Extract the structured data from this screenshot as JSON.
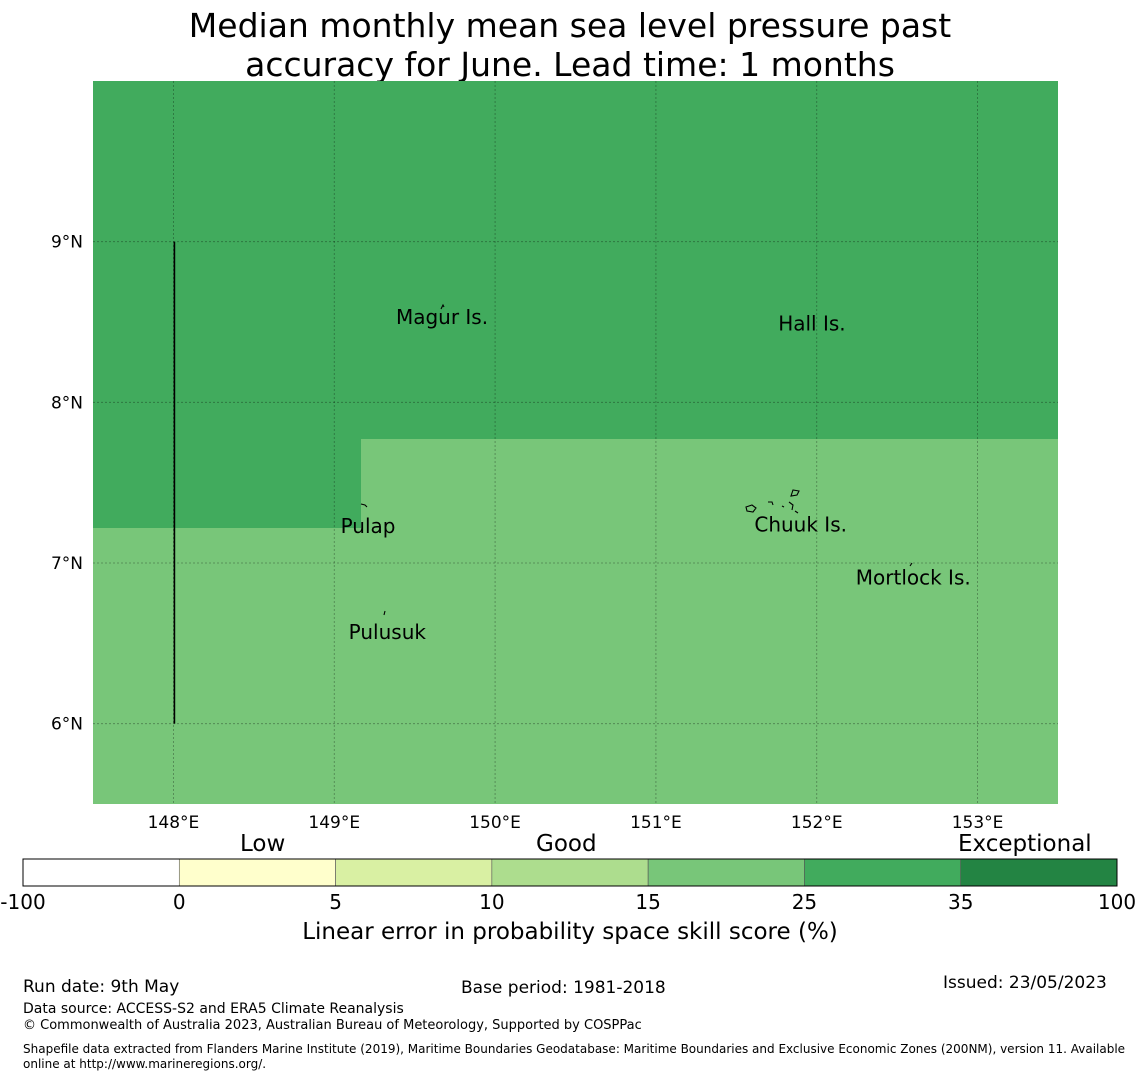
{
  "title_line1": "Median monthly mean sea level pressure past",
  "title_line2": "accuracy for June. Lead time: 1 months",
  "map": {
    "lon_range": [
      147.5,
      153.5
    ],
    "lat_range": [
      5.5,
      10.0
    ],
    "lon_ticks": [
      148,
      149,
      150,
      151,
      152,
      153
    ],
    "lon_tick_labels": [
      "148°E",
      "149°E",
      "150°E",
      "151°E",
      "152°E",
      "153°E"
    ],
    "lat_ticks": [
      9,
      8,
      7,
      6
    ],
    "lat_tick_labels": [
      "9°N",
      "8°N",
      "7°N",
      "6°N"
    ],
    "gridlines": true,
    "regions": [
      {
        "category": "25-35",
        "color": "#41ab5d",
        "description": "upper area"
      },
      {
        "category": "15-25",
        "color": "#78c679",
        "description": "lower area"
      }
    ],
    "boundary_line": {
      "lon": 148.0,
      "lat_from": 6.0,
      "lat_to": 9.0
    },
    "places": [
      {
        "name": "Magur Is.",
        "lon": 149.67,
        "lat": 8.53
      },
      {
        "name": "Hall Is.",
        "lon": 151.97,
        "lat": 8.49
      },
      {
        "name": "Pulap",
        "lon": 149.21,
        "lat": 7.23
      },
      {
        "name": "Chuuk Is.",
        "lon": 151.9,
        "lat": 7.24
      },
      {
        "name": "Mortlock Is.",
        "lon": 152.6,
        "lat": 6.91
      },
      {
        "name": "Pulusuk",
        "lon": 149.33,
        "lat": 6.57
      }
    ]
  },
  "colorbar": {
    "category_labels": [
      "Low",
      "Good",
      "Exceptional"
    ],
    "bins": [
      {
        "color": "#ffffff"
      },
      {
        "color": "#ffffcc"
      },
      {
        "color": "#d9f0a3"
      },
      {
        "color": "#addd8e"
      },
      {
        "color": "#78c679"
      },
      {
        "color": "#41ab5d"
      },
      {
        "color": "#238443"
      }
    ],
    "tick_labels": [
      "-100",
      "0",
      "5",
      "10",
      "15",
      "25",
      "35",
      "100"
    ],
    "title": "Linear error in probability space skill score (%)"
  },
  "footer": {
    "run_date": "Run date: 9th May",
    "base_period": "Base period: 1981-2018",
    "issued": "Issued: 23/05/2023",
    "data_source": "Data source: ACCESS-S2 and ERA5 Climate Reanalysis",
    "copyright": "© Commonwealth of Australia 2023, Australian Bureau of Meteorology, Supported by COSPPac",
    "shapefile_line1": "Shapefile data extracted from Flanders Marine Institute (2019), Maritime Boundaries Geodatabase: Maritime Boundaries and Exclusive Economic Zones (200NM), version 11. Available",
    "shapefile_line2": "online at http://www.marineregions.org/."
  }
}
